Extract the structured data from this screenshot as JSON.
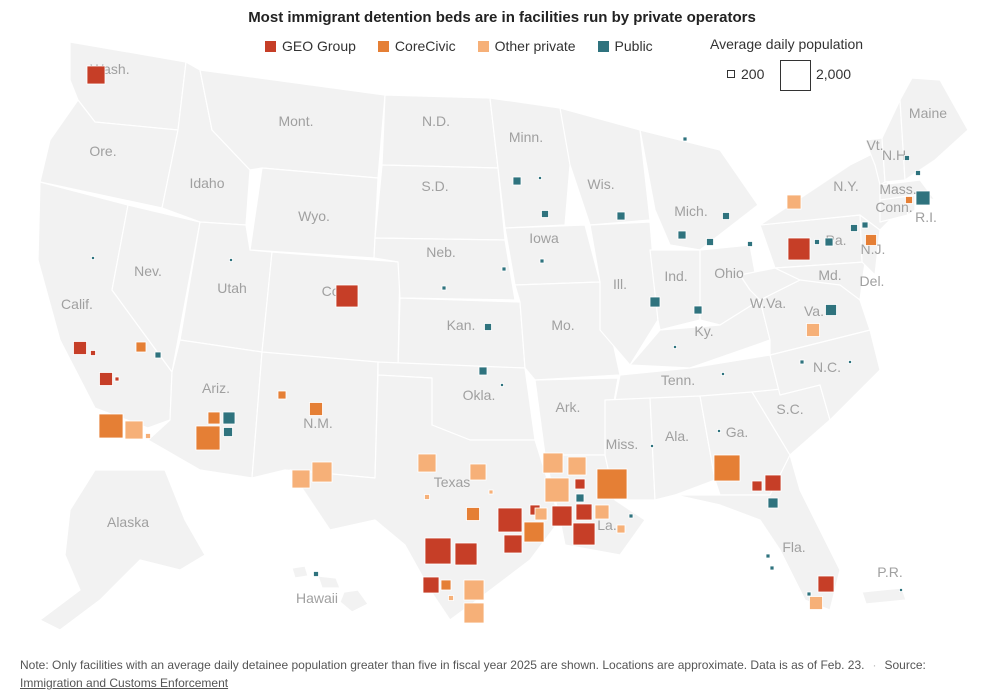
{
  "title": "Most immigrant detention beds are in facilities run by private operators",
  "legend": {
    "operators": [
      {
        "label": "GEO Group",
        "color": "#c63e27"
      },
      {
        "label": "CoreCivic",
        "color": "#e57f35"
      },
      {
        "label": "Other private",
        "color": "#f6b078"
      },
      {
        "label": "Public",
        "color": "#2f737e"
      }
    ],
    "size_title": "Average daily population",
    "size_small": "200",
    "size_large": "2,000"
  },
  "state_labels": [
    "Wash.",
    "Ore.",
    "Calif.",
    "Idaho",
    "Mont.",
    "Nev.",
    "Utah",
    "Wyo.",
    "Colo.",
    "Ariz.",
    "N.M.",
    "N.D.",
    "S.D.",
    "Neb.",
    "Kan.",
    "Okla.",
    "Texas",
    "Minn.",
    "Iowa",
    "Mo.",
    "Ark.",
    "La.",
    "Wis.",
    "Ill.",
    "Mich.",
    "Ind.",
    "Ohio",
    "Ky.",
    "Tenn.",
    "Miss.",
    "Ala.",
    "Ga.",
    "Fla.",
    "S.C.",
    "N.C.",
    "Va.",
    "W.Va.",
    "Md.",
    "Del.",
    "Pa.",
    "N.J.",
    "N.Y.",
    "Conn.",
    "R.I.",
    "Mass.",
    "Vt.",
    "N.H.",
    "Maine",
    "Alaska",
    "Hawaii",
    "P.R."
  ],
  "facility_groups": [
    "GEO Group",
    "CoreCivic",
    "Other private",
    "Public"
  ],
  "note": "Note: Only facilities with an average daily detainee population greater than five in fiscal year 2025 are shown. Locations are approximate. Data is as of Feb. 23.",
  "source_label": "Source:",
  "source_name": "Immigration and Customs Enforcement"
}
